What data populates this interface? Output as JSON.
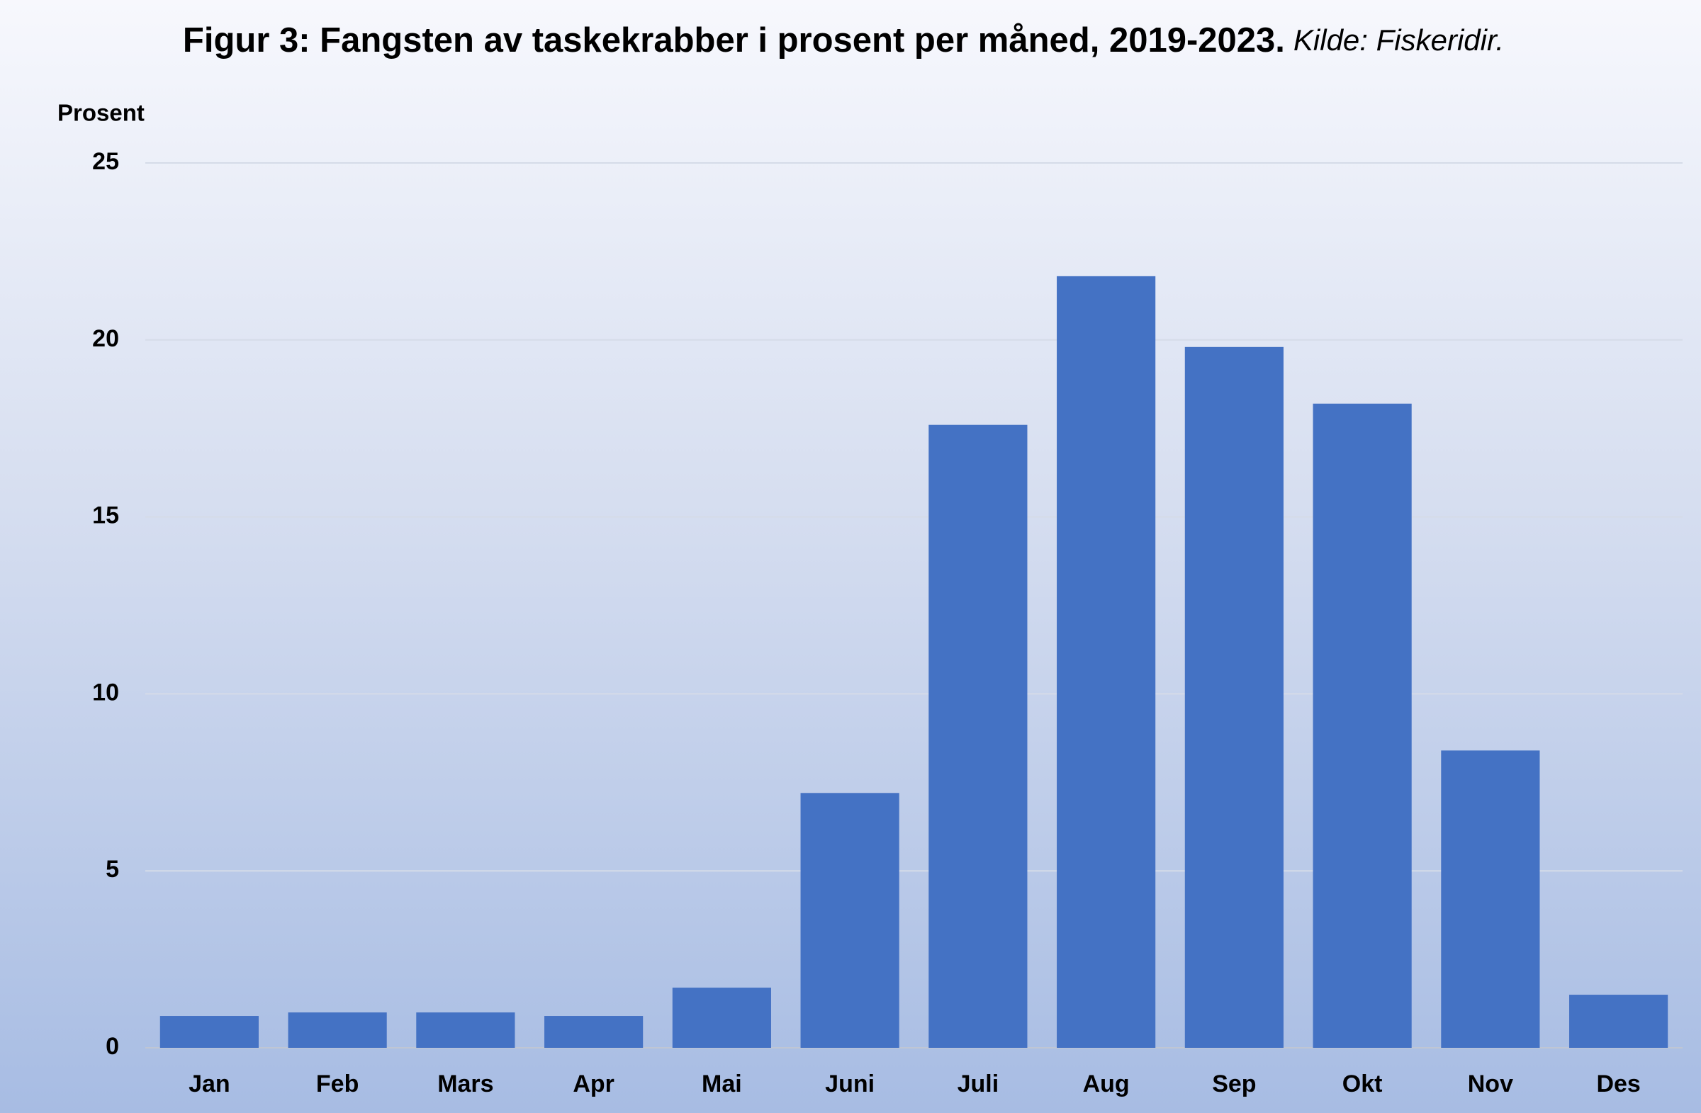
{
  "chart_data": {
    "type": "bar",
    "title": "Figur 3: Fangsten av taskekrabber i prosent per måned,  2019-2023.",
    "source": "Kilde: Fiskeridir.",
    "ylabel": "Prosent",
    "categories": [
      "Jan",
      "Feb",
      "Mars",
      "Apr",
      "Mai",
      "Juni",
      "Juli",
      "Aug",
      "Sep",
      "Okt",
      "Nov",
      "Des"
    ],
    "values": [
      0.9,
      1.0,
      1.0,
      0.9,
      1.7,
      7.2,
      17.6,
      21.8,
      19.8,
      18.2,
      8.4,
      1.5
    ],
    "color": "#4472c4",
    "ylim": [
      0,
      25
    ],
    "yticks": [
      0,
      5,
      10,
      15,
      20,
      25
    ],
    "grid": true
  }
}
